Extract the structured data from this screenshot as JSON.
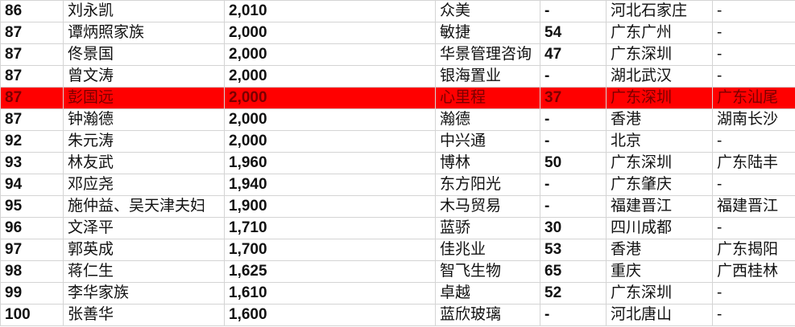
{
  "table": {
    "rows": [
      [
        "86",
        "刘永凯",
        "2,010",
        "众美",
        "-",
        "河北石家庄",
        "-"
      ],
      [
        "87",
        "谭炳照家族",
        "2,000",
        "敏捷",
        "54",
        "广东广州",
        "-"
      ],
      [
        "87",
        "佟景国",
        "2,000",
        "华景管理咨询",
        "47",
        "广东深圳",
        "-"
      ],
      [
        "87",
        "曾文涛",
        "2,000",
        "银海置业",
        "-",
        "湖北武汉",
        "-"
      ],
      [
        "87",
        "彭国远",
        "2,000",
        "心里程",
        "37",
        "广东深圳",
        "广东汕尾"
      ],
      [
        "87",
        "钟瀚德",
        "2,000",
        "瀚德",
        "-",
        "香港",
        "湖南长沙"
      ],
      [
        "92",
        "朱元涛",
        "2,000",
        "中兴通",
        "-",
        "北京",
        "-"
      ],
      [
        "93",
        "林友武",
        "1,960",
        "博林",
        "50",
        "广东深圳",
        "广东陆丰"
      ],
      [
        "94",
        "邓应尧",
        "1,940",
        "东方阳光",
        "-",
        "广东肇庆",
        "-"
      ],
      [
        "95",
        "施仲益、吴天津夫妇",
        "1,900",
        "木马贸易",
        "-",
        "福建晋江",
        "福建晋江"
      ],
      [
        "96",
        "文泽平",
        "1,710",
        "蓝骄",
        "30",
        "四川成都",
        "-"
      ],
      [
        "97",
        "郭英成",
        "1,700",
        "佳兆业",
        "53",
        "香港",
        "广东揭阳"
      ],
      [
        "98",
        "蒋仁生",
        "1,625",
        "智飞生物",
        "65",
        "重庆",
        "广西桂林"
      ],
      [
        "99",
        "李华家族",
        "1,610",
        "卓越",
        "52",
        "广东深圳",
        "-"
      ],
      [
        "100",
        "张善华",
        "1,600",
        "蓝欣玻璃",
        "-",
        "河北唐山",
        "-"
      ]
    ]
  }
}
